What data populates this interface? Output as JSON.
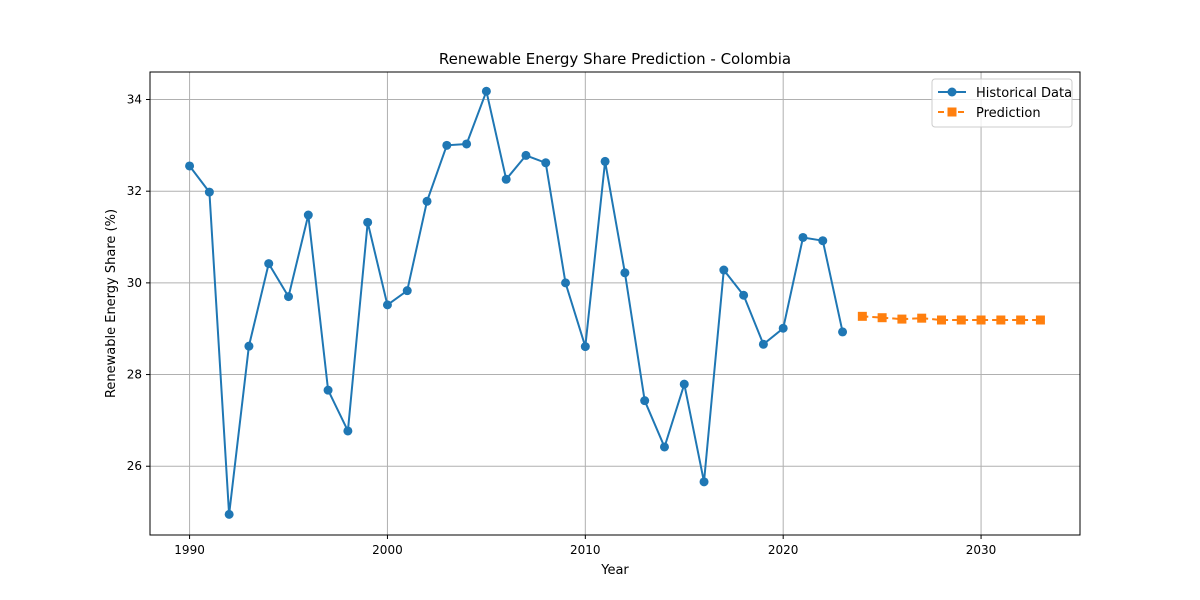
{
  "chart_data": {
    "type": "line",
    "title": "Renewable Energy Share Prediction - Colombia",
    "xlabel": "Year",
    "ylabel": "Renewable Energy Share (%)",
    "xlim": [
      1988,
      2035
    ],
    "ylim": [
      24.5,
      34.6
    ],
    "x_ticks": [
      1990,
      2000,
      2010,
      2020,
      2030
    ],
    "y_ticks": [
      26,
      28,
      30,
      32,
      34
    ],
    "grid": true,
    "legend_position": "top-right",
    "series": [
      {
        "name": "Historical Data",
        "color": "#1f77b4",
        "marker": "circle",
        "line_style": "solid",
        "x": [
          1990,
          1991,
          1992,
          1993,
          1994,
          1995,
          1996,
          1997,
          1998,
          1999,
          2000,
          2001,
          2002,
          2003,
          2004,
          2005,
          2006,
          2007,
          2008,
          2009,
          2010,
          2011,
          2012,
          2013,
          2014,
          2015,
          2016,
          2017,
          2018,
          2019,
          2020,
          2021,
          2022,
          2023
        ],
        "values": [
          32.55,
          31.98,
          24.95,
          28.62,
          30.42,
          29.7,
          31.48,
          27.66,
          26.77,
          31.32,
          29.52,
          29.83,
          31.78,
          33.0,
          33.03,
          34.18,
          32.26,
          32.78,
          32.62,
          30.0,
          28.61,
          32.65,
          30.22,
          27.43,
          26.42,
          27.79,
          25.66,
          30.28,
          29.73,
          28.66,
          29.01,
          30.99,
          30.92,
          28.93
        ]
      },
      {
        "name": "Prediction",
        "color": "#ff7f0e",
        "marker": "square",
        "line_style": "dashed",
        "x": [
          2024,
          2025,
          2026,
          2027,
          2028,
          2029,
          2030,
          2031,
          2032,
          2033
        ],
        "values": [
          29.27,
          29.24,
          29.21,
          29.23,
          29.19,
          29.19,
          29.19,
          29.19,
          29.19,
          29.19
        ]
      }
    ]
  }
}
